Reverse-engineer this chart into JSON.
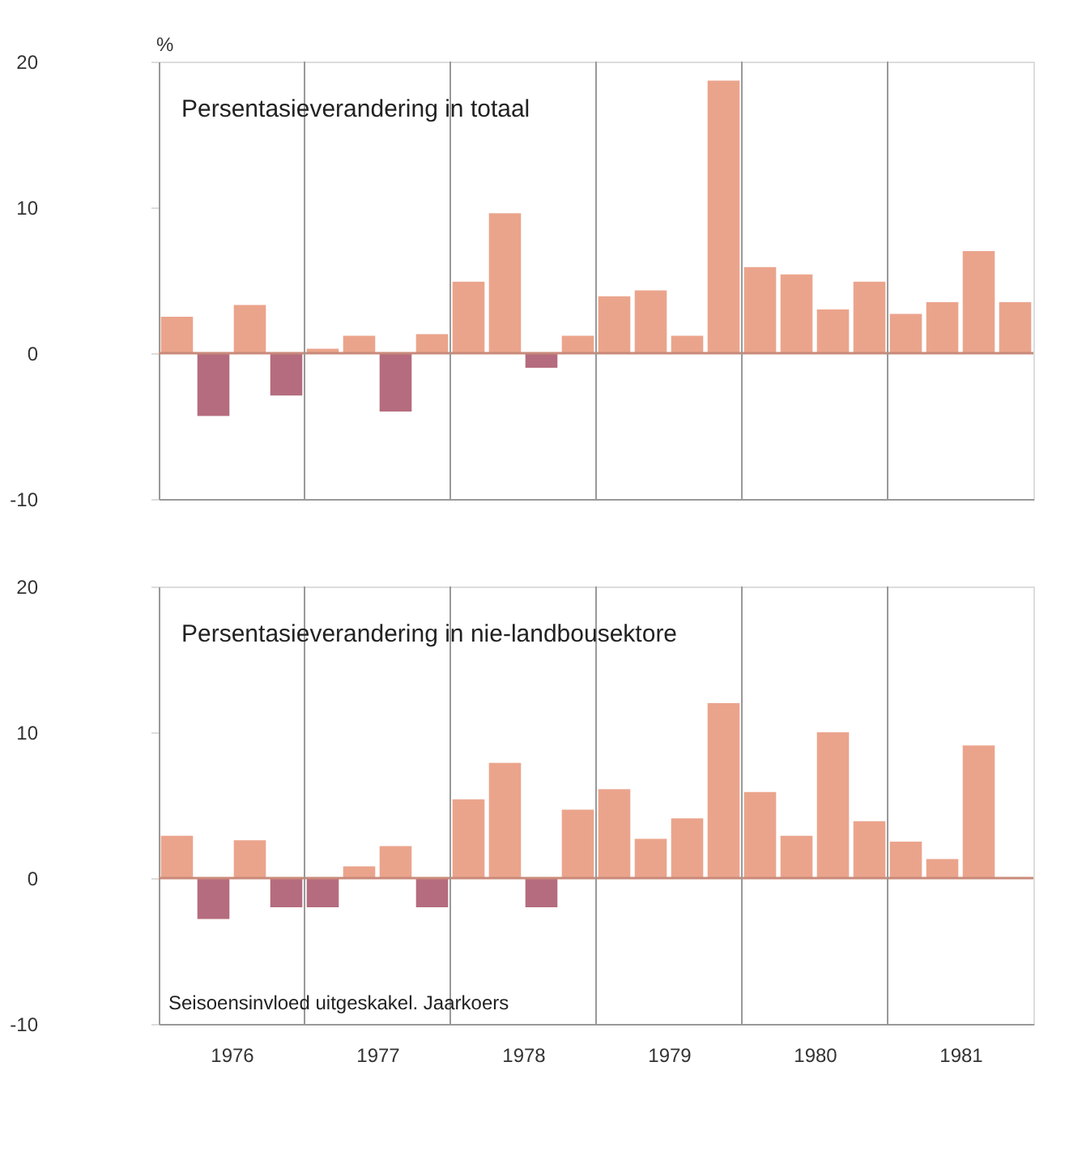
{
  "chart_data": [
    {
      "type": "bar",
      "title": "Persentasieverandering in totaal",
      "ylabel": "%",
      "x": [
        1976.125,
        1976.375,
        1976.625,
        1976.875,
        1977.125,
        1977.375,
        1977.625,
        1977.875,
        1978.125,
        1978.375,
        1978.625,
        1978.875,
        1979.125,
        1979.375,
        1979.625,
        1979.875,
        1980.125,
        1980.375,
        1980.625,
        1980.875,
        1981.125,
        1981.375,
        1981.625,
        1981.875
      ],
      "values": [
        2.5,
        -4.3,
        3.3,
        -2.9,
        0.3,
        1.2,
        -4.0,
        1.3,
        4.9,
        9.6,
        -1.0,
        1.2,
        3.9,
        4.3,
        1.2,
        18.7,
        5.9,
        5.4,
        3.0,
        4.9,
        2.7,
        3.5,
        7.0,
        3.5
      ],
      "colors": [
        "#eba48c",
        "#b56c7e",
        "#eba48c",
        "#b56c7e",
        "#eba48c",
        "#eba48c",
        "#b56c7e",
        "#eba48c",
        "#eba48c",
        "#eba48c",
        "#b56c7e",
        "#eba48c",
        "#eba48c",
        "#eba48c",
        "#eba48c",
        "#eba48c",
        "#eba48c",
        "#eba48c",
        "#eba48c",
        "#eba48c",
        "#eba48c",
        "#eba48c",
        "#eba48c",
        "#eba48c"
      ],
      "xlim": [
        1976,
        1982
      ],
      "ylim": [
        -10,
        20
      ],
      "yticks": [
        -10,
        0,
        10,
        20
      ],
      "tick_labels": "y",
      "grid": false,
      "ref_lines": [
        {
          "axis": "y",
          "value": 0,
          "color": "#c98a7a"
        },
        {
          "axis": "x",
          "value": 1977,
          "color": "#999999"
        },
        {
          "axis": "x",
          "value": 1978,
          "color": "#999999"
        },
        {
          "axis": "x",
          "value": 1979,
          "color": "#999999"
        },
        {
          "axis": "x",
          "value": 1980,
          "color": "#999999"
        },
        {
          "axis": "x",
          "value": 1981,
          "color": "#999999"
        }
      ]
    },
    {
      "type": "bar",
      "title": "Persentasieverandering in nie-landbousektore",
      "x": [
        1976.125,
        1976.375,
        1976.625,
        1976.875,
        1977.125,
        1977.375,
        1977.625,
        1977.875,
        1978.125,
        1978.375,
        1978.625,
        1978.875,
        1979.125,
        1979.375,
        1979.625,
        1979.875,
        1980.125,
        1980.375,
        1980.625,
        1980.875,
        1981.125,
        1981.375,
        1981.625
      ],
      "values": [
        2.9,
        -2.8,
        2.6,
        -2.0,
        -2.0,
        0.8,
        2.2,
        -2.0,
        5.4,
        7.9,
        -2.0,
        4.7,
        6.1,
        2.7,
        4.1,
        12.0,
        5.9,
        2.9,
        10.0,
        3.9,
        2.5,
        1.3,
        9.1
      ],
      "colors": [
        "#eba48c",
        "#b56c7e",
        "#eba48c",
        "#b56c7e",
        "#b56c7e",
        "#eba48c",
        "#eba48c",
        "#b56c7e",
        "#eba48c",
        "#eba48c",
        "#b56c7e",
        "#eba48c",
        "#eba48c",
        "#eba48c",
        "#eba48c",
        "#eba48c",
        "#eba48c",
        "#eba48c",
        "#eba48c",
        "#eba48c",
        "#eba48c",
        "#eba48c",
        "#eba48c"
      ],
      "xlim": [
        1976,
        1982
      ],
      "ylim": [
        -10,
        20
      ],
      "yticks": [
        -10,
        0,
        10,
        20
      ],
      "grid": false,
      "xticks": [
        {
          "value": 1976.5,
          "label": "1976"
        },
        {
          "value": 1977.5,
          "label": "1977"
        },
        {
          "value": 1978.5,
          "label": "1978"
        },
        {
          "value": 1979.5,
          "label": "1979"
        },
        {
          "value": 1980.5,
          "label": "1980"
        },
        {
          "value": 1981.5,
          "label": "1981"
        }
      ],
      "annotations": [
        "Seisoensinvloed uitgeskakel. Jaarkoers"
      ],
      "ref_lines": [
        {
          "axis": "y",
          "value": 0,
          "color": "#c98a7a"
        },
        {
          "axis": "x",
          "value": 1977,
          "color": "#999999"
        },
        {
          "axis": "x",
          "value": 1978,
          "color": "#999999"
        },
        {
          "axis": "x",
          "value": 1979,
          "color": "#999999"
        },
        {
          "axis": "x",
          "value": 1980,
          "color": "#999999"
        },
        {
          "axis": "x",
          "value": 1981,
          "color": "#999999"
        }
      ]
    }
  ]
}
